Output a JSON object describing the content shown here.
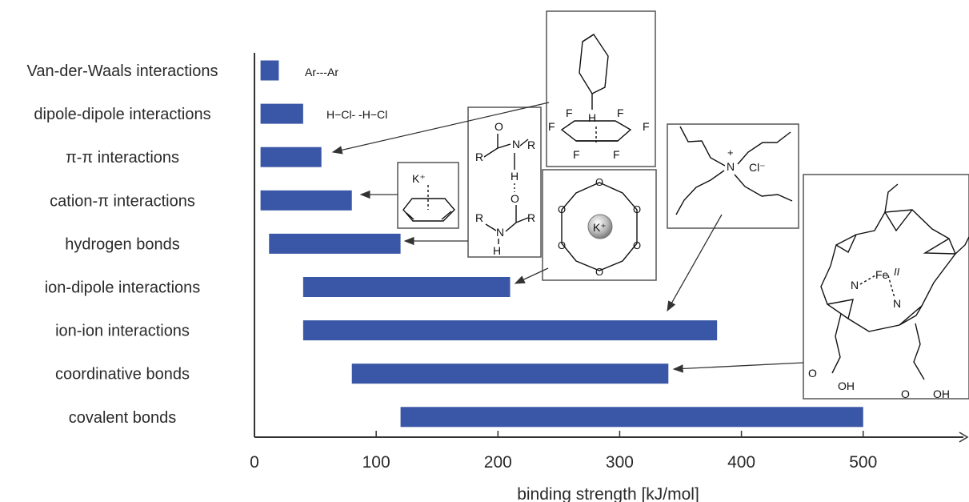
{
  "chart_data": {
    "type": "bar",
    "orientation": "horizontal-range",
    "title": "",
    "xlabel": "binding strength [kJ/mol]",
    "ylabel": "",
    "xlim": [
      0,
      580
    ],
    "xticks": [
      0,
      100,
      200,
      300,
      400,
      500
    ],
    "bar_color": "#3a56a6",
    "categories": [
      "Van-der-Waals interactions",
      "dipole-dipole interactions",
      "π-π interactions",
      "cation-π interactions",
      "hydrogen bonds",
      "ion-dipole interactions",
      "ion-ion interactions",
      "coordinative bonds",
      "covalent bonds"
    ],
    "ranges": [
      [
        5,
        20
      ],
      [
        5,
        40
      ],
      [
        5,
        55
      ],
      [
        5,
        80
      ],
      [
        12,
        120
      ],
      [
        40,
        210
      ],
      [
        40,
        380
      ],
      [
        80,
        340
      ],
      [
        120,
        500
      ]
    ],
    "annotations": {
      "vdw": "Ar---Ar",
      "dipole": "H−Cl- -H−Cl",
      "cation": "K⁺",
      "crown": "K⁺",
      "ammonium": "Cl⁻",
      "heme_fe": "Fe",
      "heme_fe_ox": "II",
      "amide_r": "R",
      "amide_n": "N",
      "amide_h": "H",
      "amide_o": "O",
      "f": "F",
      "h": "H",
      "n": "N",
      "o": "O",
      "oh": "OH",
      "plus": "+"
    }
  }
}
